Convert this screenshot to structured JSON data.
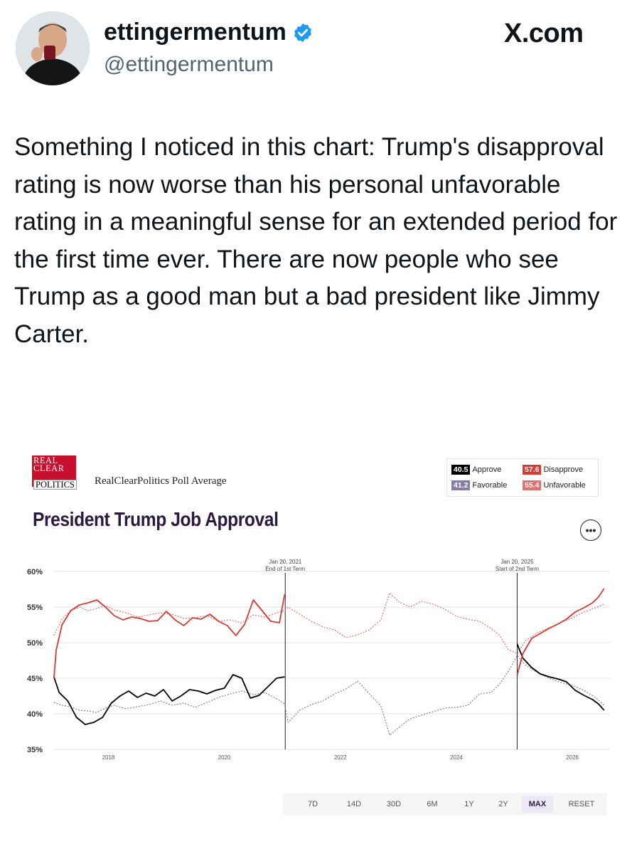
{
  "header": {
    "display_name": "ettingermentum",
    "handle": "@ettingermentum",
    "site": "X.com",
    "avatar_icon": "avatar-photo",
    "verified_icon": "verified-badge-icon"
  },
  "tweet": {
    "text": "Something I noticed in this chart: Trump's disapproval rating is now worse than his personal unfavorable rating in a meaningful sense for an extended period for the first time ever. There are now people who see Trump as a good man but a bad president like Jimmy Carter."
  },
  "card": {
    "logo_lines": [
      "REAL",
      "CLEAR",
      "POLITICS"
    ],
    "poll_average_label": "RealClearPolitics Poll Average",
    "title": "President Trump Job Approval",
    "more_icon": "more-options-icon",
    "legend": [
      {
        "value": "40.5",
        "label": "Approve",
        "color": "#000000"
      },
      {
        "value": "57.6",
        "label": "Disapprove",
        "color": "#d93a32"
      },
      {
        "value": "41.2",
        "label": "Favorable",
        "color": "#8a7ca8"
      },
      {
        "value": "55.4",
        "label": "Unfavorable",
        "color": "#e67070"
      }
    ],
    "range_buttons": [
      "7D",
      "14D",
      "30D",
      "6M",
      "1Y",
      "2Y",
      "MAX",
      "RESET"
    ],
    "active_range": "MAX"
  },
  "chart_data": {
    "type": "line",
    "title": "President Trump Job Approval",
    "xlabel": "",
    "ylabel": "",
    "y_ticks": [
      "60%",
      "55%",
      "50%",
      "45%",
      "40%",
      "35%"
    ],
    "x_ticks": [
      "2018",
      "2020",
      "2022",
      "2024",
      "2026"
    ],
    "ylim": [
      35,
      60
    ],
    "xlim": [
      2017.05,
      2026.65
    ],
    "grid": true,
    "annotations": [
      {
        "x": 2021.05,
        "line1": "Jan 20, 2021",
        "line2": "End of 1st Term"
      },
      {
        "x": 2025.05,
        "line1": "Jan 20, 2025",
        "line2": "Start of 2nd Term"
      }
    ],
    "series": [
      {
        "name": "Approve",
        "color": "#000000",
        "style": "solid",
        "x": [
          2017.06,
          2017.15,
          2017.3,
          2017.45,
          2017.6,
          2017.75,
          2017.9,
          2018.05,
          2018.2,
          2018.35,
          2018.5,
          2018.65,
          2018.8,
          2018.95,
          2019.1,
          2019.25,
          2019.4,
          2019.55,
          2019.7,
          2019.85,
          2020.0,
          2020.15,
          2020.3,
          2020.45,
          2020.6,
          2020.75,
          2020.9,
          2021.04,
          2025.05,
          2025.15,
          2025.3,
          2025.45,
          2025.6,
          2025.75,
          2025.9,
          2026.05,
          2026.2,
          2026.35,
          2026.45,
          2026.55
        ],
        "y": [
          45.2,
          43.0,
          41.8,
          39.5,
          38.5,
          38.8,
          39.5,
          41.5,
          42.5,
          43.2,
          42.3,
          42.9,
          42.5,
          43.4,
          41.8,
          42.5,
          43.4,
          43.2,
          42.8,
          43.3,
          43.6,
          45.5,
          45.0,
          42.2,
          42.6,
          43.8,
          45.0,
          45.2,
          49.8,
          47.8,
          46.5,
          45.6,
          45.2,
          44.9,
          44.5,
          43.3,
          42.6,
          42.0,
          41.4,
          40.5
        ]
      },
      {
        "name": "Disapprove",
        "color": "#d93a32",
        "style": "solid",
        "x": [
          2017.06,
          2017.1,
          2017.2,
          2017.35,
          2017.5,
          2017.65,
          2017.8,
          2017.95,
          2018.1,
          2018.25,
          2018.4,
          2018.55,
          2018.7,
          2018.85,
          2019.0,
          2019.15,
          2019.3,
          2019.45,
          2019.6,
          2019.75,
          2019.9,
          2020.05,
          2020.2,
          2020.35,
          2020.5,
          2020.65,
          2020.8,
          2020.95,
          2021.04,
          2025.05,
          2025.15,
          2025.3,
          2025.45,
          2025.6,
          2025.75,
          2025.9,
          2026.05,
          2026.2,
          2026.35,
          2026.45,
          2026.55
        ],
        "y": [
          45.0,
          49.0,
          52.5,
          54.5,
          55.3,
          55.6,
          56.0,
          55.0,
          53.8,
          53.2,
          53.6,
          53.4,
          53.0,
          53.1,
          54.4,
          53.2,
          52.4,
          53.5,
          53.3,
          54.0,
          53.0,
          52.4,
          51.0,
          52.6,
          56.0,
          54.5,
          53.0,
          52.8,
          56.8,
          45.5,
          48.5,
          50.6,
          51.3,
          52.0,
          52.6,
          53.3,
          54.3,
          54.9,
          55.6,
          56.4,
          57.6
        ]
      },
      {
        "name": "Favorable",
        "color": "#8a7ca8",
        "style": "dotted",
        "x": [
          2017.06,
          2017.2,
          2017.35,
          2017.5,
          2017.65,
          2017.8,
          2017.95,
          2018.1,
          2018.3,
          2018.5,
          2018.7,
          2018.9,
          2019.1,
          2019.3,
          2019.5,
          2019.7,
          2019.9,
          2020.1,
          2020.3,
          2020.5,
          2020.7,
          2020.9,
          2021.04,
          2021.1,
          2021.3,
          2021.5,
          2021.7,
          2021.9,
          2022.1,
          2022.3,
          2022.5,
          2022.7,
          2022.85,
          2023.0,
          2023.2,
          2023.4,
          2023.6,
          2023.8,
          2024.0,
          2024.2,
          2024.4,
          2024.6,
          2024.75,
          2024.9,
          2025.05,
          2025.2,
          2025.4,
          2025.6,
          2025.8,
          2026.0,
          2026.2,
          2026.4,
          2026.55
        ],
        "y": [
          41.6,
          41.2,
          41.0,
          40.5,
          40.4,
          40.2,
          40.8,
          41.2,
          40.7,
          41.0,
          41.3,
          41.8,
          41.2,
          41.5,
          40.9,
          41.6,
          42.3,
          42.8,
          43.2,
          42.7,
          43.0,
          42.1,
          41.4,
          38.8,
          40.5,
          41.3,
          41.8,
          42.8,
          43.5,
          44.6,
          42.8,
          41.1,
          37.0,
          38.0,
          39.3,
          39.8,
          40.3,
          40.8,
          40.9,
          41.2,
          42.8,
          43.0,
          44.2,
          46.0,
          48.2,
          46.8,
          45.8,
          45.0,
          44.4,
          44.0,
          43.3,
          42.3,
          41.2
        ]
      },
      {
        "name": "Unfavorable",
        "color": "#e67070",
        "style": "dotted",
        "x": [
          2017.06,
          2017.2,
          2017.35,
          2017.5,
          2017.65,
          2017.8,
          2017.95,
          2018.1,
          2018.3,
          2018.5,
          2018.7,
          2018.9,
          2019.1,
          2019.3,
          2019.5,
          2019.7,
          2019.9,
          2020.1,
          2020.3,
          2020.5,
          2020.7,
          2020.9,
          2021.04,
          2021.1,
          2021.3,
          2021.5,
          2021.7,
          2021.9,
          2022.1,
          2022.3,
          2022.5,
          2022.7,
          2022.85,
          2023.0,
          2023.2,
          2023.4,
          2023.6,
          2023.8,
          2024.0,
          2024.2,
          2024.4,
          2024.6,
          2024.75,
          2024.9,
          2025.05,
          2025.2,
          2025.4,
          2025.6,
          2025.8,
          2026.0,
          2026.2,
          2026.4,
          2026.55
        ],
        "y": [
          51.0,
          53.3,
          54.5,
          55.0,
          54.5,
          54.8,
          55.2,
          54.6,
          54.2,
          53.6,
          53.9,
          54.2,
          54.0,
          53.4,
          53.5,
          53.8,
          53.0,
          53.2,
          52.8,
          53.9,
          53.6,
          54.2,
          54.5,
          55.0,
          54.0,
          53.0,
          52.2,
          51.8,
          50.7,
          51.1,
          51.8,
          53.2,
          57.0,
          55.8,
          55.0,
          55.8,
          55.4,
          54.7,
          53.7,
          53.3,
          53.0,
          52.0,
          51.0,
          49.0,
          48.5,
          50.3,
          51.4,
          52.1,
          52.8,
          53.5,
          54.3,
          54.9,
          55.4
        ]
      }
    ]
  }
}
